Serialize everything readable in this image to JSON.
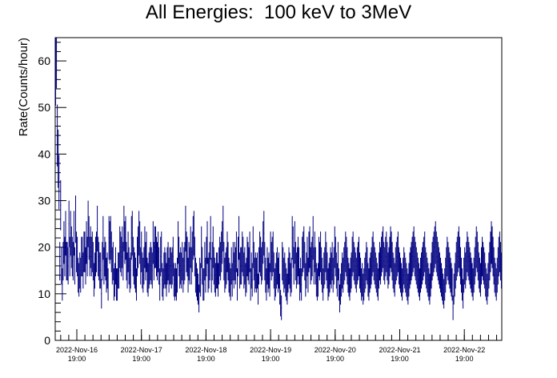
{
  "chart_data": {
    "type": "scatter",
    "title": "All Energies:  100 keV to 3MeV",
    "ylabel": "Rate(Counts/hour)",
    "xlabel": "",
    "ylim": [
      0,
      65
    ],
    "yticks": [
      0,
      10,
      20,
      30,
      40,
      50,
      60
    ],
    "xlim": [
      "2022-11-16 10:00",
      "2022-11-23 06:00"
    ],
    "xticks": [
      {
        "date": "2022-Nov-16",
        "time": "19:00"
      },
      {
        "date": "2022-Nov-17",
        "time": "19:00"
      },
      {
        "date": "2022-Nov-18",
        "time": "19:00"
      },
      {
        "date": "2022-Nov-19",
        "time": "19:00"
      },
      {
        "date": "2022-Nov-20",
        "time": "19:00"
      },
      {
        "date": "2022-Nov-21",
        "time": "19:00"
      },
      {
        "date": "2022-Nov-22",
        "time": "19:00"
      }
    ],
    "grid": false,
    "marker": "cross with vertical error bar",
    "series_color": "#000080",
    "series": [
      {
        "error": "sqrt(N)",
        "values": [
          58,
          62,
          44,
          39,
          34,
          17,
          29,
          16,
          12,
          17,
          21,
          18,
          23,
          17,
          17,
          16,
          25,
          18,
          23,
          20,
          18,
          17,
          23,
          16,
          26,
          19,
          18,
          14,
          13,
          15,
          14,
          18,
          18,
          15,
          19,
          19,
          16,
          21,
          18,
          25,
          22,
          18,
          20,
          18,
          19,
          17,
          13,
          15,
          18,
          19,
          24,
          18,
          17,
          15,
          15,
          10,
          17,
          22,
          16,
          18,
          17,
          14,
          15,
          12,
          22,
          21,
          22,
          19,
          16,
          17,
          12,
          13,
          16,
          12,
          12,
          15,
          15,
          20,
          19,
          18,
          20,
          17,
          24,
          21,
          22,
          17,
          15,
          19,
          16,
          14,
          15,
          22,
          23,
          18,
          16,
          15,
          14,
          12,
          18,
          20,
          23,
          21,
          16,
          19,
          15,
          14,
          16,
          20,
          17,
          19,
          14,
          13,
          15,
          16,
          17,
          16,
          15,
          21,
          17,
          20,
          20,
          18,
          17,
          19,
          16,
          12,
          18,
          19,
          13,
          12,
          15,
          16,
          15,
          13,
          16,
          17,
          14,
          16,
          16,
          15,
          16,
          18,
          13,
          12,
          13,
          12,
          14,
          21,
          18,
          15,
          16,
          15,
          17,
          14,
          16,
          17,
          24,
          19,
          18,
          14,
          17,
          16,
          20,
          16,
          19,
          22,
          23,
          18,
          14,
          13,
          12,
          11,
          9,
          14,
          13,
          20,
          16,
          12,
          12,
          17,
          14,
          18,
          21,
          14,
          15,
          17,
          22,
          14,
          17,
          20,
          16,
          14,
          13,
          15,
          15,
          13,
          16,
          18,
          17,
          19,
          21,
          24,
          17,
          14,
          15,
          16,
          19,
          17,
          14,
          13,
          12,
          16,
          13,
          17,
          15,
          17,
          16,
          19,
          12,
          18,
          22,
          15,
          16,
          16,
          19,
          18,
          15,
          16,
          13,
          14,
          18,
          17,
          16,
          19,
          12,
          15,
          13,
          20,
          17,
          14,
          15,
          14,
          15,
          11,
          16,
          19,
          18,
          16,
          17,
          21,
          23,
          17,
          14,
          12,
          16,
          14,
          15,
          13,
          19,
          17,
          18,
          19,
          15,
          12,
          13,
          15,
          16,
          14,
          15,
          11,
          8,
          7,
          17,
          16,
          14,
          15,
          13,
          12,
          11,
          14,
          16,
          15,
          13,
          14,
          22,
          20,
          16,
          21,
          17,
          15,
          16,
          18,
          16,
          12,
          14,
          12,
          18,
          19,
          20,
          17,
          13,
          15,
          18,
          14,
          19,
          20,
          16,
          17,
          18,
          22,
          16,
          19,
          16,
          13,
          12,
          13,
          18,
          17,
          19,
          16,
          14,
          12,
          15,
          16,
          19,
          17,
          15,
          12,
          13,
          14,
          16,
          15,
          17,
          14,
          16,
          20,
          18,
          15,
          13,
          17,
          12,
          9,
          11,
          13,
          15,
          14,
          16,
          17,
          19,
          18,
          16,
          14,
          13,
          12,
          14,
          15,
          18,
          19,
          17,
          16,
          15,
          14,
          16,
          17,
          18,
          15,
          14,
          12,
          13,
          11,
          12,
          14,
          15,
          17,
          16,
          13,
          12,
          14,
          15,
          16,
          18,
          19,
          17,
          16,
          15,
          14,
          13,
          12,
          15,
          17,
          16,
          18,
          19,
          20,
          17,
          16,
          18,
          19,
          17,
          15,
          16,
          18,
          20,
          19,
          17,
          15,
          14,
          13,
          16,
          17,
          18,
          19,
          16,
          15,
          14,
          13,
          12,
          14,
          16,
          15,
          14,
          13,
          12,
          11,
          13,
          15,
          16,
          17,
          18,
          19,
          20,
          18,
          17,
          16,
          15,
          14,
          13,
          12,
          14,
          15,
          16,
          17,
          18,
          19,
          16,
          15,
          14,
          13,
          12,
          11,
          13,
          15,
          17,
          18,
          19,
          20,
          21,
          19,
          18,
          17,
          16,
          15,
          14,
          13,
          12,
          11,
          10,
          12,
          14,
          16,
          18,
          17,
          16,
          15,
          14,
          13,
          12,
          7,
          11,
          13,
          15,
          17,
          18,
          19,
          20,
          18,
          16,
          14,
          12,
          10,
          14,
          16,
          15,
          17,
          19,
          18,
          17,
          16,
          15,
          14,
          13,
          12,
          14,
          16,
          18,
          20,
          19,
          17,
          15,
          14,
          13,
          16,
          18,
          17,
          16,
          15,
          13,
          12,
          11,
          13,
          15,
          17,
          19,
          21,
          20,
          18,
          16,
          14,
          13,
          12,
          14,
          16,
          18,
          19,
          17,
          15
        ]
      }
    ]
  }
}
